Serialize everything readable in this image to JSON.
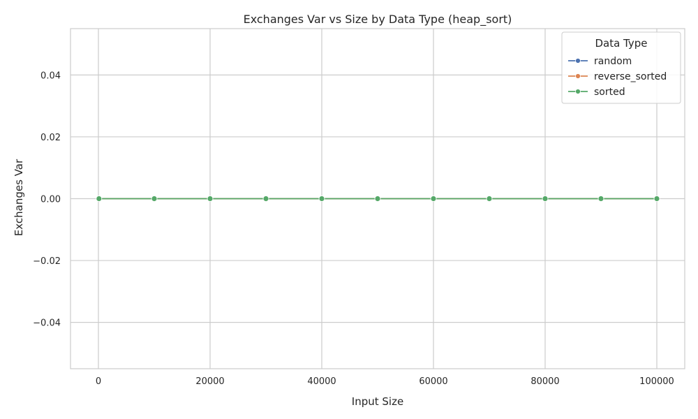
{
  "chart_data": {
    "type": "line",
    "title": "Exchanges Var vs Size by Data Type (heap_sort)",
    "xlabel": "Input Size",
    "ylabel": "Exchanges Var",
    "xlim": [
      -5000,
      105000
    ],
    "ylim": [
      -0.055,
      0.055
    ],
    "x_ticks": [
      0,
      20000,
      40000,
      60000,
      80000,
      100000
    ],
    "y_ticks": [
      -0.04,
      -0.02,
      0.0,
      0.02,
      0.04
    ],
    "y_tick_labels": [
      "−0.04",
      "−0.02",
      "0.00",
      "0.02",
      "0.04"
    ],
    "grid": true,
    "legend": {
      "title": "Data Type",
      "placement": "top-right"
    },
    "x": [
      100,
      10000,
      20000,
      30000,
      40000,
      50000,
      60000,
      70000,
      80000,
      90000,
      100000
    ],
    "series": [
      {
        "name": "random",
        "color": "#4c72b0",
        "values": [
          0,
          0,
          0,
          0,
          0,
          0,
          0,
          0,
          0,
          0,
          0
        ]
      },
      {
        "name": "reverse_sorted",
        "color": "#dd8452",
        "values": [
          0,
          0,
          0,
          0,
          0,
          0,
          0,
          0,
          0,
          0,
          0
        ]
      },
      {
        "name": "sorted",
        "color": "#55a868",
        "values": [
          0,
          0,
          0,
          0,
          0,
          0,
          0,
          0,
          0,
          0,
          0
        ]
      }
    ]
  }
}
